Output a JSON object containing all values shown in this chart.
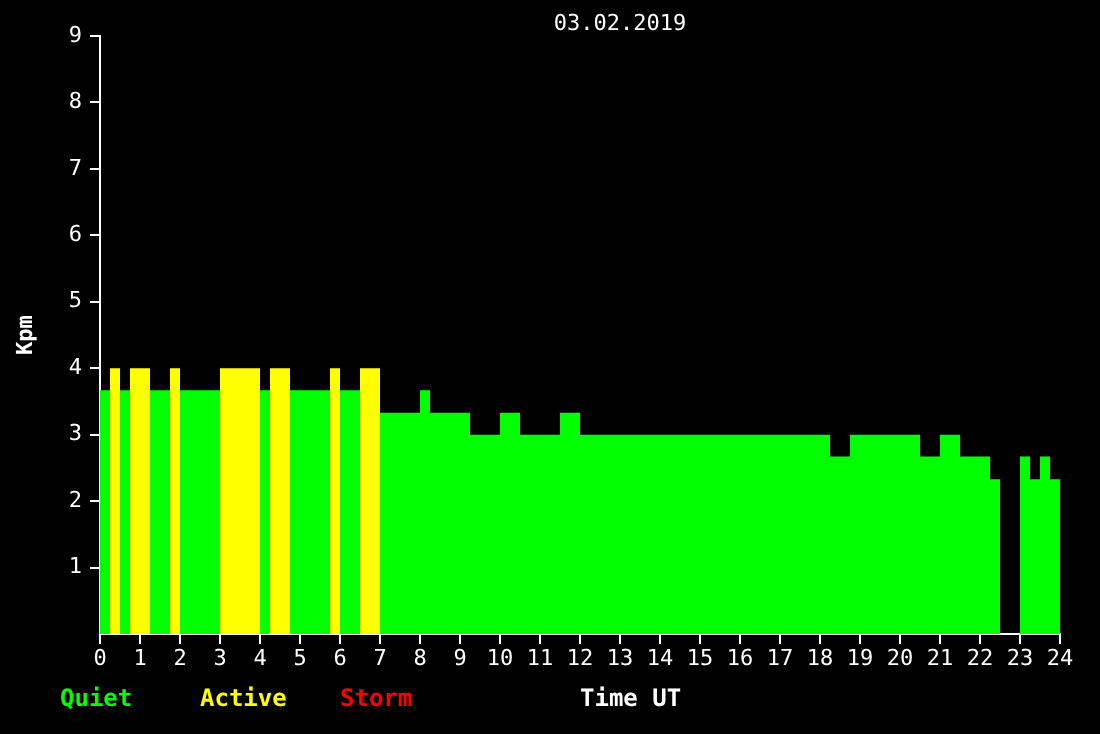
{
  "chart_data": {
    "type": "area",
    "title": "03.02.2019",
    "xlabel": "Time UT",
    "ylabel": "Kpm",
    "series": [
      {
        "name": "Quiet",
        "color": "#00ff00",
        "x": [
          0,
          0.25
        ],
        "values": [
          3.67,
          3.67
        ]
      },
      {
        "color": "#00ff00",
        "x": [
          0.5,
          0.75
        ],
        "values": [
          3.67,
          3.67
        ]
      },
      {
        "color": "#00ff00",
        "x": [
          1.25,
          1.75
        ],
        "values": [
          3.67,
          3.67
        ]
      },
      {
        "color": "#00ff00",
        "x": [
          2,
          3
        ],
        "values": [
          3.67,
          3.67
        ]
      },
      {
        "color": "#00ff00",
        "x": [
          4,
          4.25
        ],
        "values": [
          3.67,
          3.67
        ]
      },
      {
        "color": "#00ff00",
        "x": [
          4.75,
          5.75
        ],
        "values": [
          3.67,
          3.67
        ]
      },
      {
        "color": "#00ff00",
        "x": [
          6,
          6.5
        ],
        "values": [
          3.67,
          3.67
        ]
      },
      {
        "color": "#00ff00",
        "x": [
          7,
          8,
          8,
          8.25,
          8.25,
          9.25,
          9.25,
          10,
          10,
          10.5,
          10.5,
          11.5,
          11.5,
          12,
          12,
          18.25,
          18.25,
          18.75,
          18.75,
          20.5,
          20.5,
          21,
          21,
          21.5,
          21.5,
          22.25,
          22.25,
          22.5
        ],
        "values": [
          3.33,
          3.33,
          3.67,
          3.67,
          3.33,
          3.33,
          3,
          3,
          3.33,
          3.33,
          3,
          3,
          3.33,
          3.33,
          3,
          3,
          2.67,
          2.67,
          3,
          3,
          2.67,
          2.67,
          3,
          3,
          2.67,
          2.67,
          2.33,
          2.33
        ]
      },
      {
        "color": "#00ff00",
        "x": [
          23,
          23.25,
          23.25,
          23.5,
          23.5,
          23.75,
          23.75,
          24
        ],
        "values": [
          2.67,
          2.67,
          2.33,
          2.33,
          2.67,
          2.67,
          2.33,
          2.33
        ]
      },
      {
        "name": "Active",
        "color": "#ffff00",
        "x": [
          0.25,
          0.5
        ],
        "values": [
          4,
          4
        ]
      },
      {
        "color": "#ffff00",
        "x": [
          0.75,
          1.25
        ],
        "values": [
          4,
          4
        ]
      },
      {
        "color": "#ffff00",
        "x": [
          1.75,
          2
        ],
        "values": [
          4,
          4
        ]
      },
      {
        "color": "#ffff00",
        "x": [
          3,
          4
        ],
        "values": [
          4,
          4
        ]
      },
      {
        "color": "#ffff00",
        "x": [
          4.25,
          4.75
        ],
        "values": [
          4,
          4
        ]
      },
      {
        "color": "#ffff00",
        "x": [
          5.75,
          6
        ],
        "values": [
          4,
          4
        ]
      },
      {
        "color": "#ffff00",
        "x": [
          6.5,
          7
        ],
        "values": [
          4,
          4
        ]
      },
      {
        "name": "Storm",
        "color": "#ff0000"
      }
    ],
    "xlim": [
      0,
      24
    ],
    "xticks": [
      0,
      1,
      2,
      3,
      4,
      5,
      6,
      7,
      8,
      9,
      10,
      11,
      12,
      13,
      14,
      15,
      16,
      17,
      18,
      19,
      20,
      21,
      22,
      23,
      24
    ],
    "ylim": [
      0,
      9
    ],
    "yticks": [
      1,
      2,
      3,
      4,
      5,
      6,
      7,
      8,
      9
    ],
    "grid": false,
    "legend": "bottom left",
    "marker": "none"
  }
}
